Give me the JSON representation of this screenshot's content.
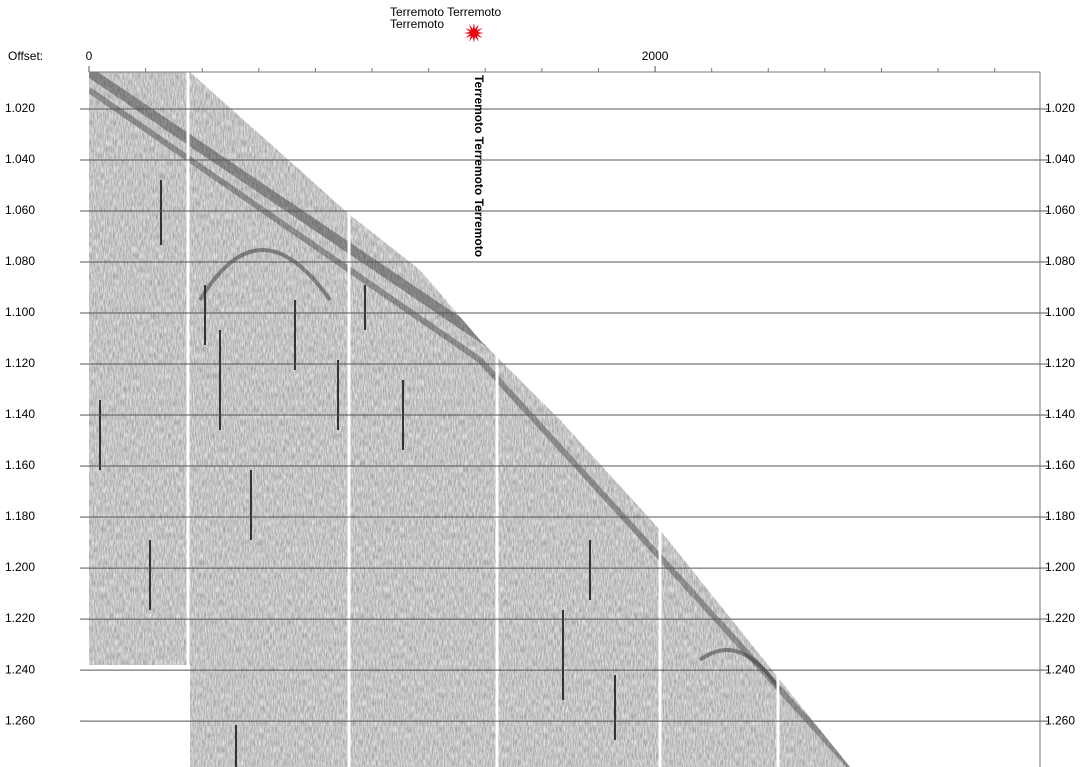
{
  "chart_data": {
    "type": "seismic",
    "title_lines": [
      "Terremoto Terremoto",
      "Terremoto"
    ],
    "x_label": "Offset:",
    "source_offset": 1360,
    "annotation": "Terremoto Terremoto Terremoto",
    "xlim": [
      0,
      3360
    ],
    "xticks": [
      0,
      2000
    ],
    "xminorticks": [
      200,
      400,
      600,
      800,
      1000,
      1200,
      1400,
      1600,
      1800,
      2200,
      2400,
      2600,
      2800,
      3000,
      3200
    ],
    "ylim": [
      1.0055,
      1.278
    ],
    "yticks": [
      {
        "value": 1.02,
        "label": "1.020"
      },
      {
        "value": 1.04,
        "label": "1.040"
      },
      {
        "value": 1.06,
        "label": "1.060"
      },
      {
        "value": 1.08,
        "label": "1.080"
      },
      {
        "value": 1.1,
        "label": "1.100"
      },
      {
        "value": 1.12,
        "label": "1.120"
      },
      {
        "value": 1.14,
        "label": "1.140"
      },
      {
        "value": 1.16,
        "label": "1.160"
      },
      {
        "value": 1.18,
        "label": "1.180"
      },
      {
        "value": 1.2,
        "label": "1.200"
      },
      {
        "value": 1.22,
        "label": "1.220"
      },
      {
        "value": 1.24,
        "label": "1.240"
      },
      {
        "value": 1.26,
        "label": "1.260"
      }
    ],
    "grid": true,
    "source_color": "#e8000b",
    "annotation_color": "#1a1a8c"
  }
}
